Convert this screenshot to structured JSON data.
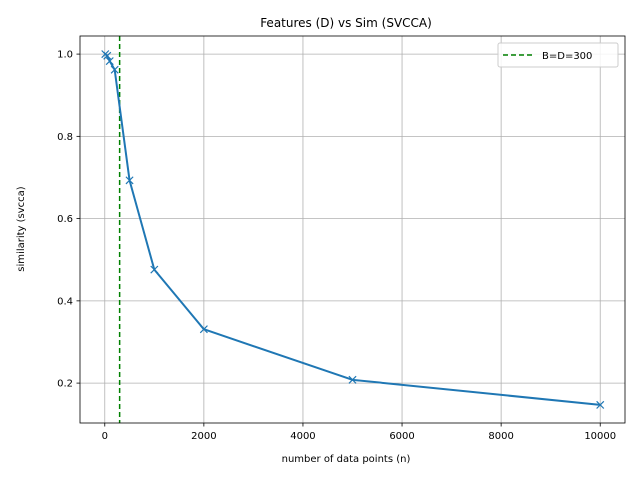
{
  "chart_data": {
    "type": "line",
    "title": "Features (D) vs Sim (SVCCA)",
    "xlabel": "number of data points (n)",
    "ylabel": "similarity (svcca)",
    "xlim": [
      -500,
      10500
    ],
    "ylim": [
      0.103,
      1.044
    ],
    "xticks": [
      0,
      2000,
      4000,
      6000,
      8000,
      10000
    ],
    "xtick_labels": [
      "0",
      "2000",
      "4000",
      "6000",
      "8000",
      "10000"
    ],
    "yticks": [
      0.2,
      0.4,
      0.6,
      0.8,
      1.0
    ],
    "ytick_labels": [
      "0.2",
      "0.4",
      "0.6",
      "0.8",
      "1.0"
    ],
    "grid": true,
    "legend_position": "upper-right",
    "series": [
      {
        "x": [
          10,
          50,
          100,
          200,
          500,
          1000,
          2000,
          5000,
          10000
        ],
        "y": [
          1.0,
          0.996,
          0.983,
          0.962,
          0.693,
          0.476,
          0.331,
          0.208,
          0.147
        ],
        "color": "#1f77b4",
        "marker": "x",
        "line_style": "solid"
      }
    ],
    "reference_lines": [
      {
        "orientation": "vertical",
        "x": 300,
        "name": "B=D=300",
        "color": "#008000",
        "line_style": "dashed"
      }
    ]
  }
}
